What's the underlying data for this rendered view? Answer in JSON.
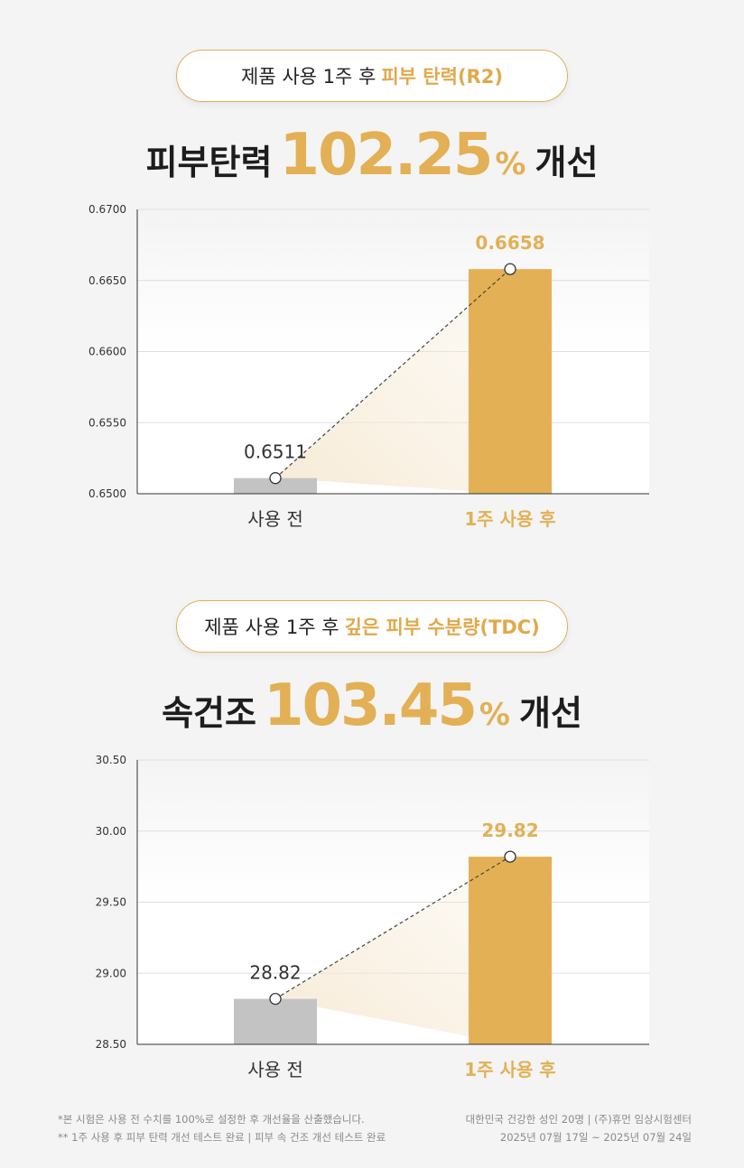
{
  "section1": {
    "pill_prefix": "제품 사용 1주 후",
    "pill_highlight": "피부 탄력(R2)",
    "headline_label": "피부탄력",
    "headline_value": "102.25",
    "headline_unit": "%",
    "headline_suffix": "개선"
  },
  "section2": {
    "pill_prefix": "제품 사용 1주 후",
    "pill_highlight": "깊은 피부 수분량(TDC)",
    "headline_label": "속건조",
    "headline_value": "103.45",
    "headline_unit": "%",
    "headline_suffix": "개선"
  },
  "chart_data": [
    {
      "type": "bar",
      "categories": [
        "사용 전",
        "1주 사용 후"
      ],
      "values": [
        0.6511,
        0.6658
      ],
      "value_labels": [
        "0.6511",
        "0.6658"
      ],
      "ylim": [
        0.65,
        0.67
      ],
      "yticks": [
        "0.6500",
        "0.6550",
        "0.6600",
        "0.6650",
        "0.6700"
      ],
      "grid": true,
      "colors": [
        "#c3c3c3",
        "#e3b055"
      ]
    },
    {
      "type": "bar",
      "categories": [
        "사용 전",
        "1주 사용 후"
      ],
      "values": [
        28.82,
        29.82
      ],
      "value_labels": [
        "28.82",
        "29.82"
      ],
      "ylim": [
        28.5,
        30.5
      ],
      "yticks": [
        "28.50",
        "29.00",
        "29.50",
        "30.00",
        "30.50"
      ],
      "grid": true,
      "colors": [
        "#c3c3c3",
        "#e3b055"
      ]
    }
  ],
  "footnotes": {
    "left": [
      "*본 시험은 사용 전 수치를 100%로 설정한 후 개선율을 산출했습니다.",
      "** 1주 사용 후 피부 탄력 개선 테스트 완료 | 피부 속 건조 개선 테스트 완료"
    ],
    "right": [
      "대한민국 건강한 성인 20명 | (주)휴먼 임상시험센터",
      "2025년 07월 17일 ~ 2025년 07월 24일"
    ]
  }
}
